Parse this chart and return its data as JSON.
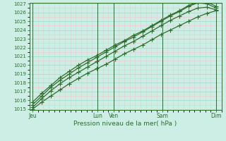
{
  "xlabel": "Pression niveau de la mer( hPa )",
  "bg_color": "#cceee4",
  "major_grid_color": "#aaddcc",
  "minor_grid_color": "#f0c8c8",
  "line_color": "#2d6e2d",
  "ylim": [
    1015,
    1027
  ],
  "yticks": [
    1015,
    1016,
    1017,
    1018,
    1019,
    1020,
    1021,
    1022,
    1023,
    1024,
    1025,
    1026,
    1027
  ],
  "xtick_labels": [
    "Jeu",
    "Lun",
    "Ven",
    "Sam",
    "Dim"
  ],
  "xtick_positions": [
    0,
    6,
    7.5,
    12,
    17
  ],
  "vlines": [
    0,
    6,
    7.5,
    12,
    17
  ],
  "series": [
    [
      1015.0,
      1015.8,
      1016.5,
      1017.2,
      1017.9,
      1018.5,
      1019.1,
      1019.6,
      1020.1,
      1020.7,
      1021.3,
      1021.8,
      1022.3,
      1022.9,
      1023.5,
      1024.0,
      1024.5,
      1025.0,
      1025.5,
      1025.9,
      1026.2
    ],
    [
      1015.2,
      1016.2,
      1017.1,
      1017.9,
      1018.6,
      1019.2,
      1019.8,
      1020.4,
      1021.0,
      1021.6,
      1022.2,
      1022.7,
      1023.3,
      1023.9,
      1024.5,
      1025.1,
      1025.6,
      1026.1,
      1026.5,
      1026.6,
      1026.3
    ],
    [
      1015.5,
      1016.5,
      1017.5,
      1018.3,
      1019.0,
      1019.7,
      1020.3,
      1020.9,
      1021.5,
      1022.1,
      1022.7,
      1023.2,
      1023.8,
      1024.4,
      1025.0,
      1025.6,
      1026.1,
      1026.7,
      1027.1,
      1027.0,
      1026.5
    ],
    [
      1015.8,
      1016.8,
      1017.7,
      1018.6,
      1019.3,
      1020.0,
      1020.6,
      1021.1,
      1021.7,
      1022.3,
      1022.8,
      1023.4,
      1023.9,
      1024.5,
      1025.1,
      1025.7,
      1026.2,
      1026.8,
      1027.2,
      1027.2,
      1026.7
    ]
  ],
  "marker": "+",
  "marker_size": 4,
  "linewidth": 0.9
}
